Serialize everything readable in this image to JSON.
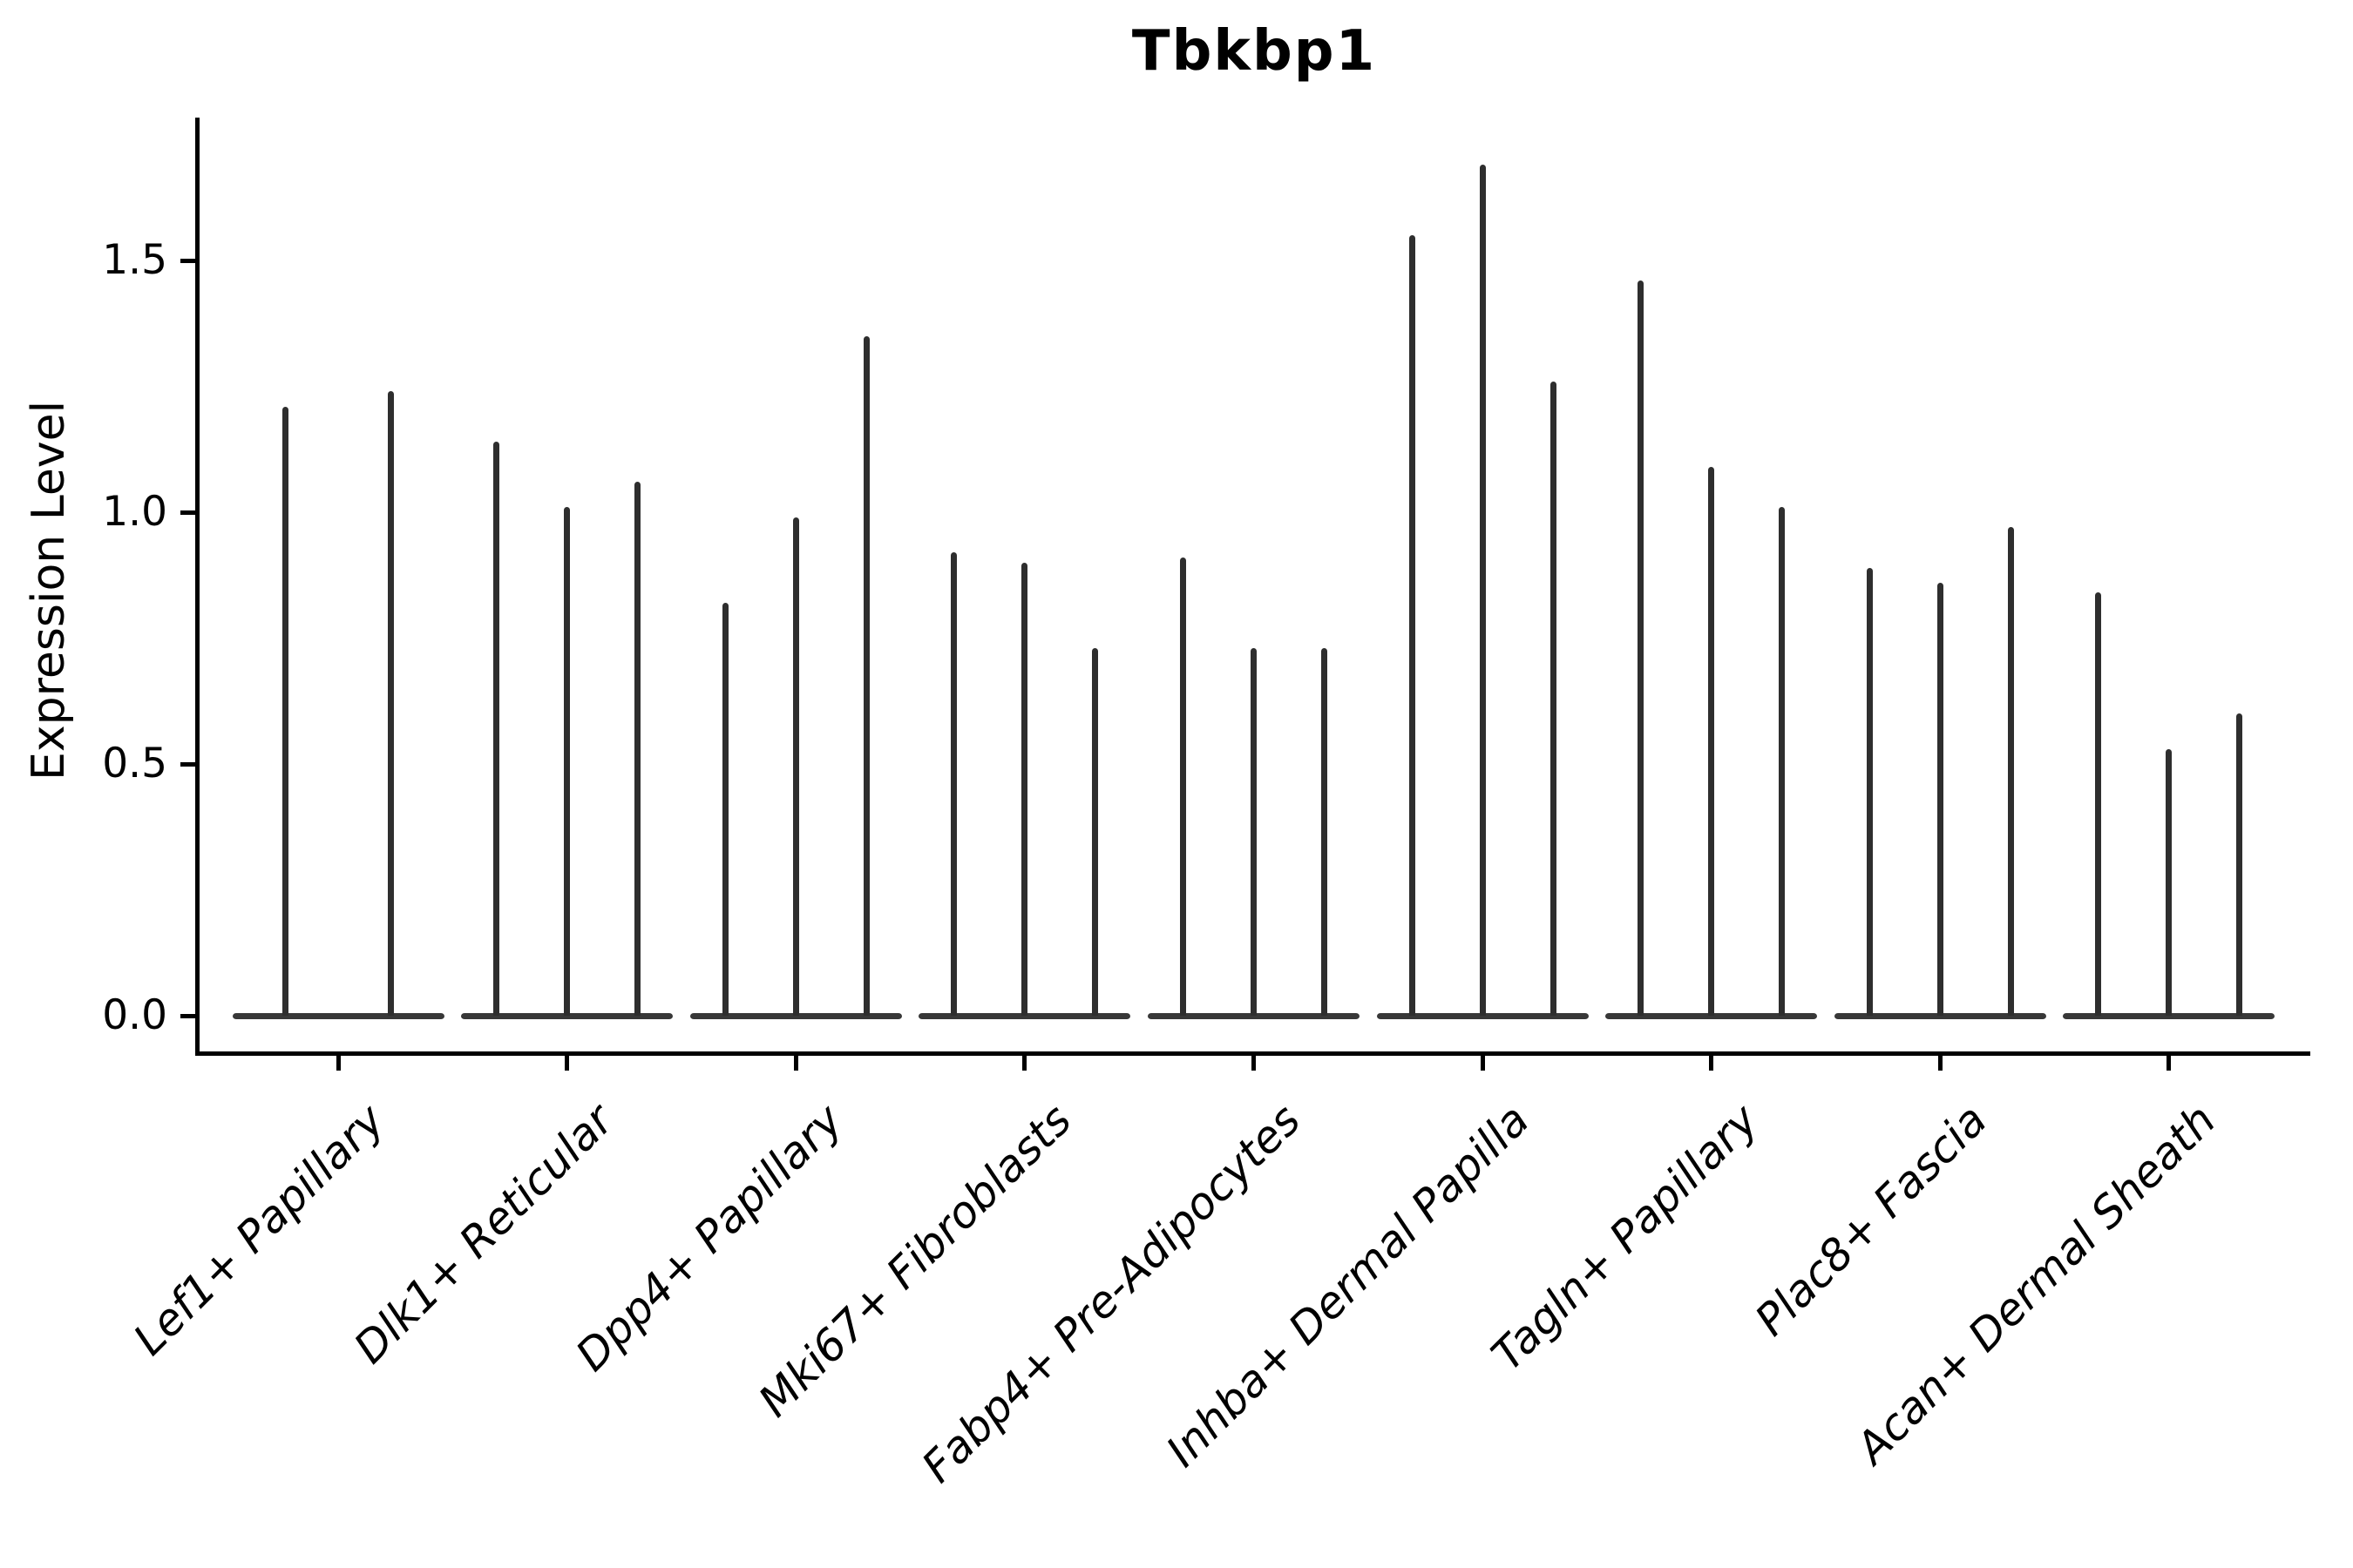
{
  "title": "Tbkbp1",
  "axes": {
    "ylabel": "Expression Level"
  },
  "colors": {
    "violin": "#2e2e2e",
    "violin_base": "#383838",
    "axis": "#000000",
    "text": "#000000",
    "background": "#ffffff"
  },
  "chart_data": {
    "type": "violin",
    "title": "Tbkbp1",
    "xlabel": "",
    "ylabel": "Expression Level",
    "ylim": [
      -0.07,
      1.79
    ],
    "yticks": [
      0.0,
      0.5,
      1.0,
      1.5
    ],
    "ytick_labels": [
      "0.0",
      "0.5",
      "1.0",
      "1.5"
    ],
    "grid": false,
    "legend": "none",
    "style_note": "Extremely narrow violins rendered as thin vertical spikes rising from a flat merged base at expression 0; x tick labels rotated 45 degrees, italic; top and right spines hidden",
    "categories": [
      "Lef1+ Papillary",
      "Dlk1+ Reticular",
      "Dpp4+ Papillary",
      "Mki67+ Fibroblasts",
      "Fabp4+ Pre-Adipocytes",
      "Inhba+ Dermal Papilla",
      "Tagln+ Papillary",
      "Plac8+ Fascia",
      "Acan+ Dermal Sheath"
    ],
    "groups": [
      {
        "category": "Lef1+ Papillary",
        "violin_max_values": [
          1.21,
          1.24
        ]
      },
      {
        "category": "Dlk1+ Reticular",
        "violin_max_values": [
          1.14,
          1.01,
          1.06
        ]
      },
      {
        "category": "Dpp4+ Papillary",
        "violin_max_values": [
          0.82,
          0.99,
          1.35
        ]
      },
      {
        "category": "Mki67+ Fibroblasts",
        "violin_max_values": [
          0.92,
          0.9,
          0.73
        ]
      },
      {
        "category": "Fabp4+ Pre-Adipocytes",
        "violin_max_values": [
          0.91,
          0.73,
          0.73
        ]
      },
      {
        "category": "Inhba+ Dermal Papilla",
        "violin_max_values": [
          1.55,
          1.69,
          1.26
        ]
      },
      {
        "category": "Tagln+ Papillary",
        "violin_max_values": [
          1.46,
          1.09,
          1.01
        ]
      },
      {
        "category": "Plac8+ Fascia",
        "violin_max_values": [
          0.89,
          0.86,
          0.97
        ]
      },
      {
        "category": "Acan+ Dermal Sheath",
        "violin_max_values": [
          0.84,
          0.53,
          0.6
        ]
      }
    ]
  }
}
